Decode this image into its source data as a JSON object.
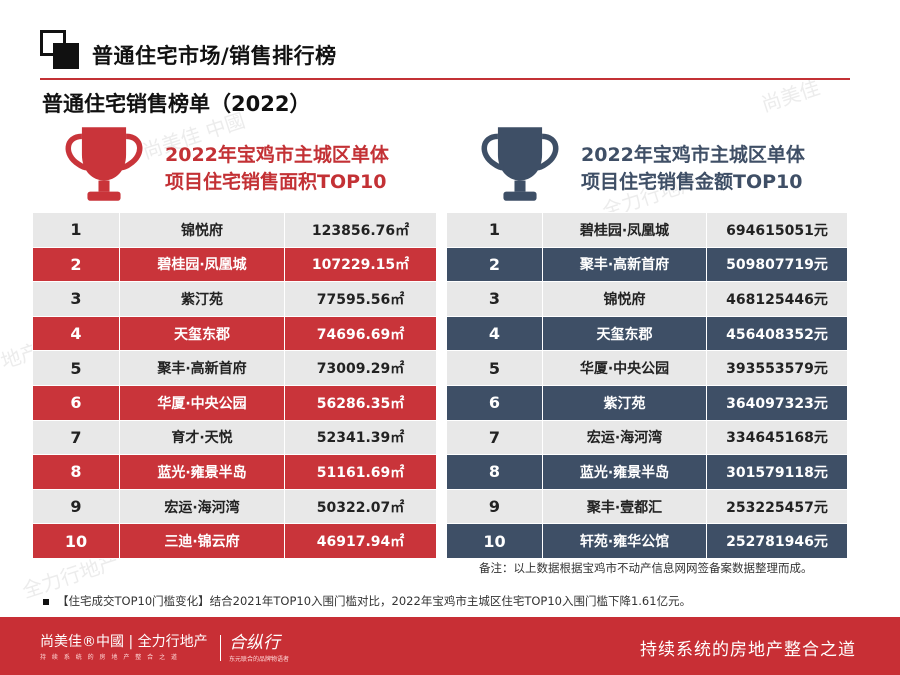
{
  "header": {
    "title": "普通住宅市场/销售排行榜",
    "section_title": "普通住宅销售榜单（2022）"
  },
  "watermark": {
    "brand": "尚美佳 中國 | 全力行地产",
    "logo": "合纵行"
  },
  "left_panel": {
    "caption_line1": "2022年宝鸡市主城区单体",
    "caption_line2": "项目住宅销售面积TOP10",
    "trophy_icon": "trophy-icon",
    "accent_color": "#c9343a",
    "rows": [
      {
        "rank": "1",
        "name": "锦悦府",
        "value": "123856.76㎡"
      },
      {
        "rank": "2",
        "name": "碧桂园·凤凰城",
        "value": "107229.15㎡"
      },
      {
        "rank": "3",
        "name": "紫汀苑",
        "value": "77595.56㎡"
      },
      {
        "rank": "4",
        "name": "天玺东郡",
        "value": "74696.69㎡"
      },
      {
        "rank": "5",
        "name": "聚丰·高新首府",
        "value": "73009.29㎡"
      },
      {
        "rank": "6",
        "name": "华厦·中央公园",
        "value": "56286.35㎡"
      },
      {
        "rank": "7",
        "name": "育才·天悦",
        "value": "52341.39㎡"
      },
      {
        "rank": "8",
        "name": "蓝光·雍景半岛",
        "value": "51161.69㎡"
      },
      {
        "rank": "9",
        "name": "宏运·海河湾",
        "value": "50322.07㎡"
      },
      {
        "rank": "10",
        "name": "三迪·锦云府",
        "value": "46917.94㎡"
      }
    ]
  },
  "right_panel": {
    "caption_line1": "2022年宝鸡市主城区单体",
    "caption_line2": "项目住宅销售金额TOP10",
    "trophy_icon": "trophy-icon",
    "accent_color": "#3e4f66",
    "rows": [
      {
        "rank": "1",
        "name": "碧桂园·凤凰城",
        "value": "694615051元"
      },
      {
        "rank": "2",
        "name": "聚丰·高新首府",
        "value": "509807719元"
      },
      {
        "rank": "3",
        "name": "锦悦府",
        "value": "468125446元"
      },
      {
        "rank": "4",
        "name": "天玺东郡",
        "value": "456408352元"
      },
      {
        "rank": "5",
        "name": "华厦·中央公园",
        "value": "393553579元"
      },
      {
        "rank": "6",
        "name": "紫汀苑",
        "value": "364097323元"
      },
      {
        "rank": "7",
        "name": "宏运·海河湾",
        "value": "334645168元"
      },
      {
        "rank": "8",
        "name": "蓝光·雍景半岛",
        "value": "301579118元"
      },
      {
        "rank": "9",
        "name": "聚丰·壹都汇",
        "value": "253225457元"
      },
      {
        "rank": "10",
        "name": "轩苑·雍华公馆",
        "value": "252781946元"
      }
    ]
  },
  "note": "备注：以上数据根据宝鸡市不动产信息网网签备案数据整理而成。",
  "footnote": "【住宅成交TOP10门槛变化】结合2021年TOP10入围门槛对比，2022年宝鸡市主城区住宅TOP10入围门槛下降1.61亿元。",
  "footer": {
    "brand": "尚美佳®中國 | 全力行地产",
    "brand_sub": "持 续 系 统 的 房 地 产 整 合 之 道",
    "logo2": "合纵行",
    "logo2_sub": "东元联合的品牌物语者",
    "slogan": "持续系统的房地产整合之道",
    "bg_color": "#c82f35"
  }
}
